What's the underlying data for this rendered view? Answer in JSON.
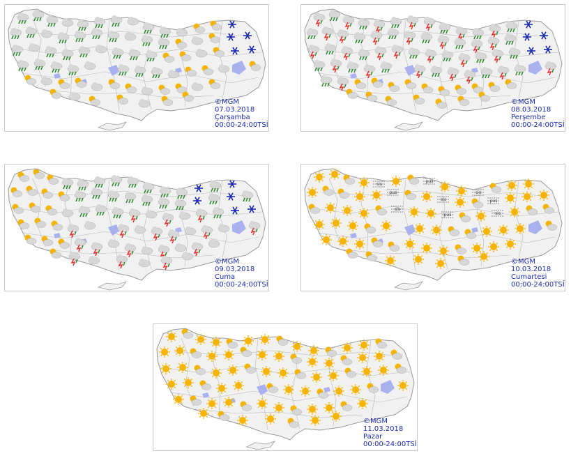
{
  "colors": {
    "land": "#f1f1f1",
    "border": "#b8b8b8",
    "lake": "#a9b2ee",
    "sun": "#f5b400",
    "cloud": "#d7d7d7",
    "rain": "#2e8b2e",
    "storm": "#e53030",
    "snow": "#1c2bb0",
    "caption": "#1c2bb0"
  },
  "panels": [
    {
      "source": "©MGM",
      "date": "07.03.2018",
      "day": "Çarşamba",
      "period": "00:00-24:00TSİ",
      "pattern": "rain"
    },
    {
      "source": "©MGM",
      "date": "08.03.2018",
      "day": "Perşembe",
      "period": "00:00-24:00TSİ",
      "pattern": "storm"
    },
    {
      "source": "©MGM",
      "date": "09.03.2018",
      "day": "Cuma",
      "period": "00:00-24:00TSİ",
      "pattern": "mixed"
    },
    {
      "source": "©MGM",
      "date": "10.03.2018",
      "day": "Cumartesi",
      "period": "00:00-24:00TSİ",
      "pattern": "sunny-fog",
      "fog_label": "sis",
      "haze_label": "pus"
    },
    {
      "source": "©MGM",
      "date": "11.03.2018",
      "day": "Pazar",
      "period": "00:00-24:00TSİ",
      "pattern": "sunny"
    }
  ]
}
